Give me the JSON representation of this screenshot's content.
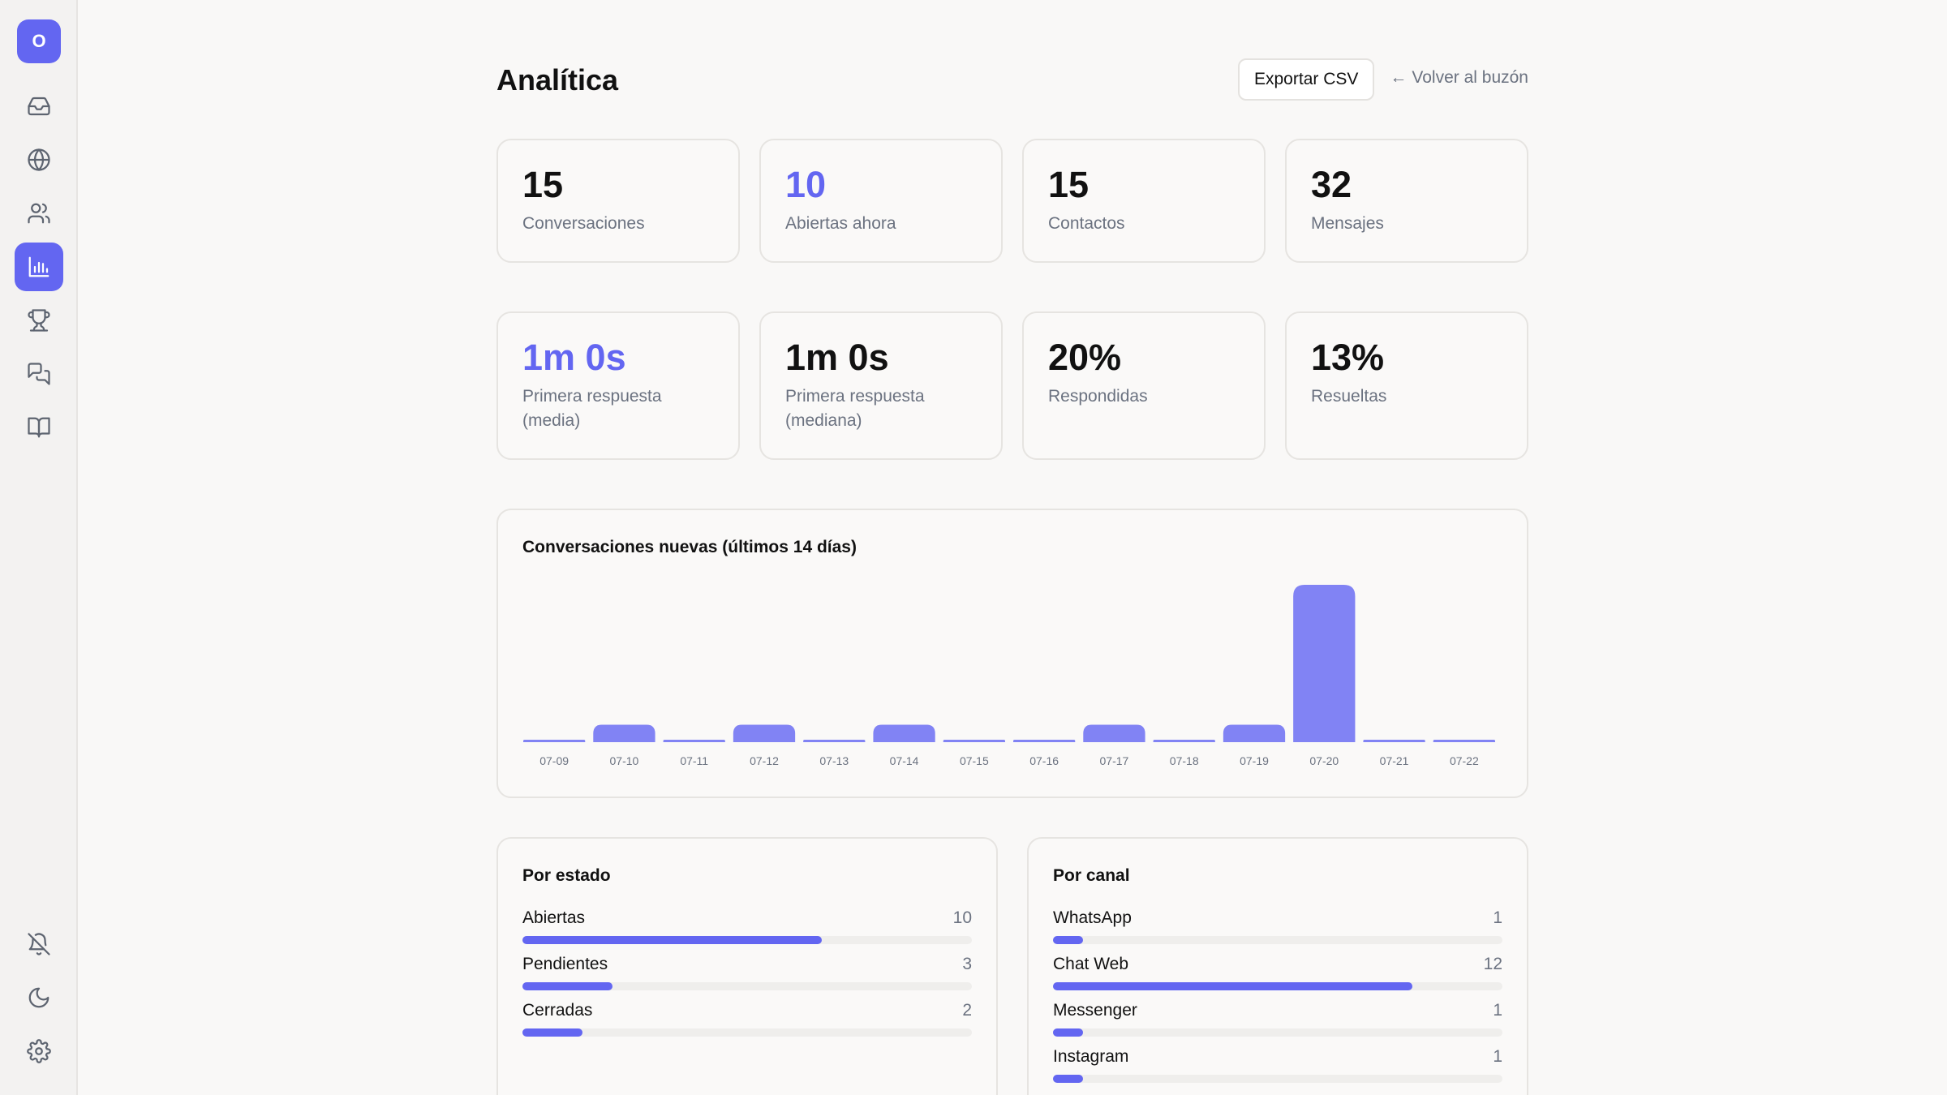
{
  "sidebar": {
    "avatar_initial": "O",
    "items": [
      {
        "icon": "inbox-icon"
      },
      {
        "icon": "globe-icon"
      },
      {
        "icon": "users-icon"
      },
      {
        "icon": "bar-chart-icon",
        "active": true
      },
      {
        "icon": "trophy-icon"
      },
      {
        "icon": "messages-icon"
      },
      {
        "icon": "book-icon"
      }
    ],
    "bottom_items": [
      {
        "icon": "bell-off-icon"
      },
      {
        "icon": "moon-icon"
      },
      {
        "icon": "gear-icon"
      }
    ]
  },
  "header": {
    "title": "Analítica",
    "export_label": "Exportar CSV",
    "back_label": "Volver al buzón"
  },
  "stats_top": [
    {
      "value": "15",
      "label": "Conversaciones",
      "accent": false
    },
    {
      "value": "10",
      "label": "Abiertas ahora",
      "accent": true
    },
    {
      "value": "15",
      "label": "Contactos",
      "accent": false
    },
    {
      "value": "32",
      "label": "Mensajes",
      "accent": false
    }
  ],
  "stats_bottom": [
    {
      "value": "1m 0s",
      "label": "Primera respuesta (media)",
      "accent": true
    },
    {
      "value": "1m 0s",
      "label": "Primera respuesta (mediana)",
      "accent": false
    },
    {
      "value": "20%",
      "label": "Respondidas",
      "accent": false
    },
    {
      "value": "13%",
      "label": "Resueltas",
      "accent": false
    }
  ],
  "chart_data": {
    "type": "bar",
    "title": "Conversaciones nuevas (últimos 14 días)",
    "categories": [
      "07-09",
      "07-10",
      "07-11",
      "07-12",
      "07-13",
      "07-14",
      "07-15",
      "07-16",
      "07-17",
      "07-18",
      "07-19",
      "07-20",
      "07-21",
      "07-22"
    ],
    "values": [
      0,
      1,
      0,
      1,
      0,
      1,
      0,
      0,
      1,
      0,
      1,
      9,
      0,
      0
    ],
    "bar_color": "#8183f4"
  },
  "by_status": {
    "title": "Por estado",
    "total": 15,
    "rows": [
      {
        "label": "Abiertas",
        "count": 10
      },
      {
        "label": "Pendientes",
        "count": 3
      },
      {
        "label": "Cerradas",
        "count": 2
      }
    ]
  },
  "by_channel": {
    "title": "Por canal",
    "total": 15,
    "rows": [
      {
        "label": "WhatsApp",
        "count": 1
      },
      {
        "label": "Chat Web",
        "count": 12
      },
      {
        "label": "Messenger",
        "count": 1
      },
      {
        "label": "Instagram",
        "count": 1
      }
    ]
  },
  "colors": {
    "accent": "#6366f1"
  }
}
